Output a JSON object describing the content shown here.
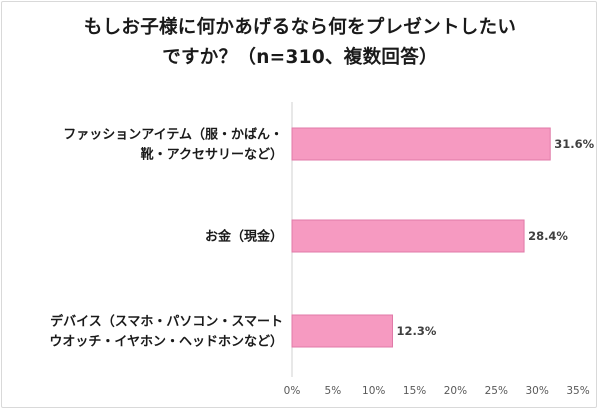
{
  "chart_data": {
    "type": "bar",
    "orientation": "horizontal",
    "title_lines": [
      "もしお子様に何かあげるなら何をプレゼントしたい",
      "ですか？（n=310、複数回答）"
    ],
    "categories": [
      [
        "ファッションアイテム（服・かばん・",
        "靴・アクセサリーなど）"
      ],
      [
        "お金（現金）"
      ],
      [
        "デバイス（スマホ・パソコン・スマート",
        "ウオッチ・イヤホン・ヘッドホンなど）"
      ]
    ],
    "values": [
      31.6,
      28.4,
      12.3
    ],
    "value_labels": [
      "31.6%",
      "28.4%",
      "12.3%"
    ],
    "xticks": [
      "0%",
      "5%",
      "10%",
      "15%",
      "20%",
      "25%",
      "30%",
      "35%"
    ],
    "xlim": [
      0,
      35
    ],
    "grid": false,
    "bar_color": "#f69ac1",
    "bar_border_color": "#e07aa8"
  }
}
